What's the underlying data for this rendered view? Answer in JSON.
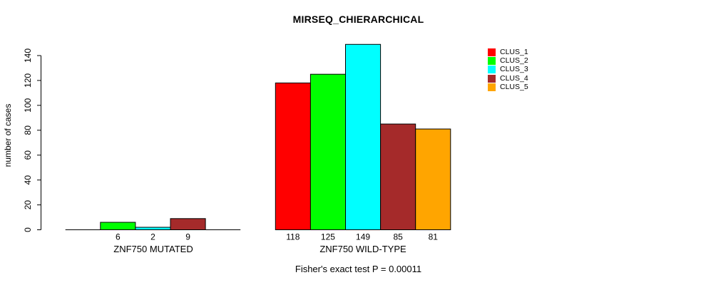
{
  "chart_data": {
    "type": "bar",
    "title": "MIRSEQ_CHIERARCHICAL",
    "subtitle": "Fisher's exact test P = 0.00011",
    "ylabel": "number of cases",
    "ylim": [
      0,
      140
    ],
    "yticks": [
      0,
      20,
      40,
      60,
      80,
      100,
      120,
      140
    ],
    "grid": false,
    "legend_position": "top-right",
    "legend": [
      {
        "label": "CLUS_1",
        "color": "#ff0000"
      },
      {
        "label": "CLUS_2",
        "color": "#00ff00"
      },
      {
        "label": "CLUS_3",
        "color": "#00ffff"
      },
      {
        "label": "CLUS_4",
        "color": "#a52a2a"
      },
      {
        "label": "CLUS_5",
        "color": "#ffa500"
      }
    ],
    "groups": [
      {
        "label": "ZNF750 MUTATED",
        "bar_values": [
          0,
          6,
          2,
          9,
          0
        ],
        "bar_labels": [
          "",
          "6",
          "2",
          "9",
          ""
        ]
      },
      {
        "label": "ZNF750 WILD-TYPE",
        "bar_values": [
          118,
          125,
          149,
          85,
          81
        ],
        "bar_labels": [
          "118",
          "125",
          "149",
          "85",
          "81"
        ]
      }
    ]
  }
}
